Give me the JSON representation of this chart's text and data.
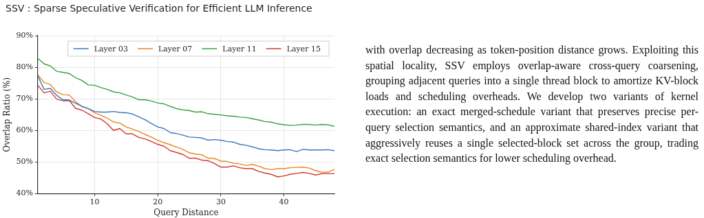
{
  "chart_data": {
    "type": "line",
    "title": "SSV : Sparse Speculative Verification for Efficient LLM Inference",
    "xlabel": "Query Distance",
    "ylabel": "Overlap Ratio (%)",
    "x": [
      1,
      2,
      3,
      4,
      5,
      6,
      7,
      8,
      9,
      10,
      11,
      12,
      13,
      14,
      15,
      16,
      17,
      18,
      19,
      20,
      21,
      22,
      23,
      24,
      25,
      26,
      27,
      28,
      29,
      30,
      31,
      32,
      33,
      34,
      35,
      36,
      37,
      38,
      39,
      40,
      41,
      42,
      43,
      44,
      45,
      46,
      47,
      48
    ],
    "series": [
      {
        "name": "Layer 03",
        "color": "#3a75bd",
        "values": [
          77.3,
          73.0,
          73.3,
          71.1,
          69.7,
          69.6,
          68.6,
          67.6,
          66.9,
          66.0,
          65.8,
          65.8,
          66.0,
          65.7,
          65.6,
          65.2,
          64.3,
          63.4,
          62.2,
          61.1,
          60.6,
          59.3,
          59.0,
          58.5,
          57.9,
          57.8,
          57.6,
          56.9,
          57.1,
          56.9,
          56.5,
          56.3,
          55.6,
          55.3,
          54.8,
          54.2,
          53.9,
          53.8,
          53.6,
          53.8,
          53.9,
          53.3,
          54.0,
          53.8,
          53.8,
          53.8,
          53.9,
          53.6
        ]
      },
      {
        "name": "Layer 07",
        "color": "#e8861c",
        "values": [
          77.6,
          75.2,
          74.5,
          72.2,
          71.3,
          71.2,
          69.1,
          67.6,
          66.9,
          65.6,
          64.8,
          63.9,
          62.7,
          62.3,
          61.1,
          60.4,
          59.7,
          58.7,
          57.9,
          56.9,
          56.1,
          55.5,
          54.7,
          54.0,
          52.9,
          52.5,
          52.3,
          51.2,
          51.1,
          50.3,
          50.2,
          49.6,
          49.4,
          48.9,
          49.2,
          48.7,
          47.9,
          47.6,
          47.9,
          47.9,
          48.2,
          48.3,
          48.4,
          48.1,
          47.3,
          46.7,
          46.8,
          47.7
        ]
      },
      {
        "name": "Layer 11",
        "color": "#3a9e40",
        "values": [
          82.8,
          81.1,
          80.4,
          78.7,
          78.4,
          78.0,
          76.7,
          75.8,
          74.4,
          74.3,
          73.6,
          73.0,
          72.2,
          71.9,
          71.2,
          70.6,
          69.7,
          69.7,
          69.3,
          68.7,
          68.4,
          67.6,
          66.9,
          66.5,
          66.3,
          65.8,
          65.9,
          65.3,
          65.1,
          64.9,
          64.6,
          64.5,
          64.2,
          64.1,
          63.7,
          63.3,
          62.8,
          62.6,
          62.1,
          61.8,
          61.6,
          61.7,
          61.9,
          61.9,
          61.7,
          61.9,
          61.8,
          61.3
        ]
      },
      {
        "name": "Layer 15",
        "color": "#d33430",
        "values": [
          74.3,
          71.9,
          72.4,
          69.9,
          69.4,
          69.4,
          67.0,
          66.4,
          65.3,
          64.1,
          63.6,
          62.1,
          60.0,
          60.6,
          58.9,
          58.9,
          57.8,
          57.3,
          56.5,
          55.6,
          55.0,
          53.6,
          53.0,
          52.4,
          51.2,
          51.2,
          50.6,
          50.4,
          49.5,
          48.4,
          48.4,
          48.8,
          48.2,
          47.9,
          47.9,
          47.0,
          46.5,
          46.1,
          45.3,
          45.6,
          46.1,
          46.4,
          46.7,
          46.4,
          45.9,
          46.3,
          46.3,
          46.3
        ]
      }
    ],
    "xlim": [
      1,
      48
    ],
    "xticks": [
      10,
      20,
      30,
      40
    ],
    "ylim": [
      40,
      90
    ],
    "yticks": [
      {
        "value": 40,
        "label": "40%"
      },
      {
        "value": 50,
        "label": "50%"
      },
      {
        "value": 60,
        "label": "60%"
      },
      {
        "value": 70,
        "label": "70%"
      },
      {
        "value": 80,
        "label": "80%"
      },
      {
        "value": 90,
        "label": "90%"
      }
    ],
    "grid": true,
    "legend": "top right",
    "marker": "none",
    "line_style": "solid",
    "annotations": [
      "with overlap decreasing as token-position distance grows. Exploiting this spatial locality, SSV employs overlap-aware cross-query coarsening, grouping adjacent queries into a single thread block to amortize KV-block loads and scheduling overheads. We develop two variants of kernel execution: an exact merged-schedule variant that preserves precise per-query selection semantics, and an approximate shared-index variant that aggressively reuses a single selected-block set across the group, trading exact selection semantics for lower scheduling overhead."
    ]
  }
}
